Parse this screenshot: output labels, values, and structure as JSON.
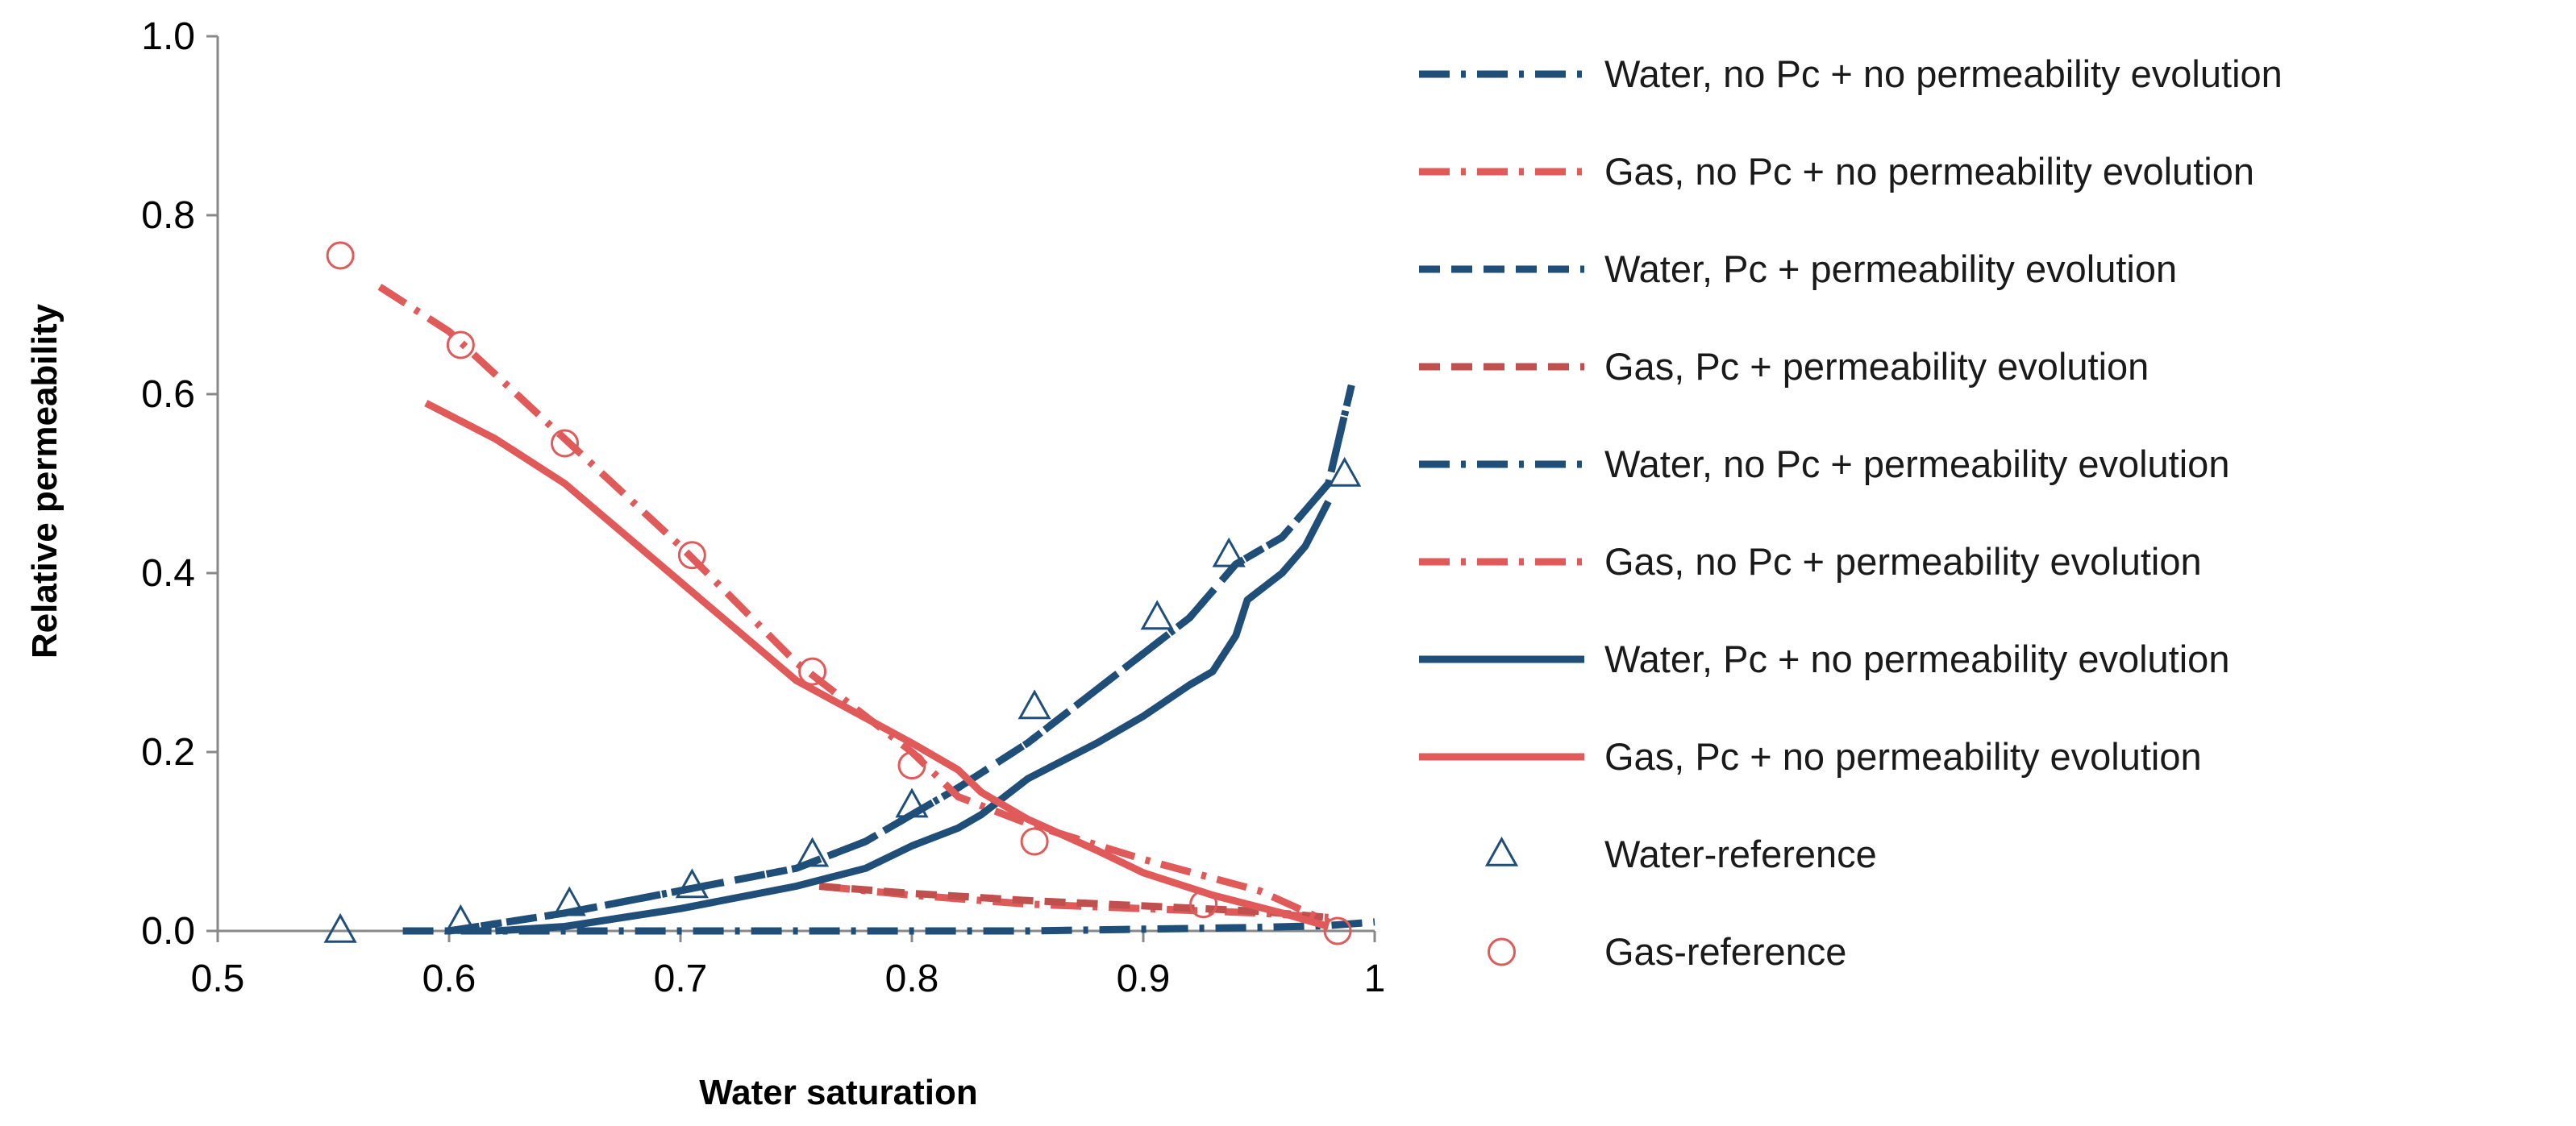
{
  "chart_data": {
    "type": "line",
    "xlabel": "Water saturation",
    "ylabel": "Relative permeability",
    "xlim": [
      0.5,
      1.0
    ],
    "ylim": [
      0.0,
      1.0
    ],
    "xticks": [
      "0.5",
      "0.6",
      "0.7",
      "0.8",
      "0.9",
      "1"
    ],
    "yticks": [
      "0.0",
      "0.2",
      "0.4",
      "0.6",
      "0.8",
      "1.0"
    ],
    "grid": false,
    "legend_position": "right",
    "colors": {
      "water": "#1f4e79",
      "gas": "#e05a5a"
    },
    "series": [
      {
        "name": "Water, no Pc + no permeability evolution",
        "color": "#1f4e79",
        "dash": "long-dash-dot",
        "marker": "none",
        "x": [
          0.58,
          0.65,
          0.7,
          0.75,
          0.8,
          0.85,
          0.9,
          0.95,
          0.98,
          1.0
        ],
        "y": [
          0.0,
          0.0,
          0.0,
          0.0,
          0.0,
          0.0,
          0.002,
          0.004,
          0.006,
          0.01
        ]
      },
      {
        "name": "Gas, no Pc + no permeability evolution",
        "color": "#e05a5a",
        "dash": "long-dash-dot",
        "marker": "none",
        "x": [
          0.76,
          0.8,
          0.85,
          0.9,
          0.95,
          0.98
        ],
        "y": [
          0.05,
          0.04,
          0.03,
          0.025,
          0.02,
          0.015
        ]
      },
      {
        "name": "Water, Pc + permeability evolution",
        "color": "#1f4e79",
        "dash": "dash",
        "marker": "none",
        "x": [
          0.6,
          0.65,
          0.7,
          0.75,
          0.78,
          0.8,
          0.82,
          0.85,
          0.88,
          0.9,
          0.92,
          0.94,
          0.96,
          0.98,
          0.99
        ],
        "y": [
          0.0,
          0.02,
          0.045,
          0.07,
          0.1,
          0.13,
          0.16,
          0.21,
          0.27,
          0.31,
          0.35,
          0.41,
          0.44,
          0.5,
          0.61
        ]
      },
      {
        "name": "Gas, Pc + permeability evolution",
        "color": "#c0504d",
        "dash": "dash",
        "marker": "none",
        "x": [
          0.76,
          0.8,
          0.85,
          0.9,
          0.95,
          0.98
        ],
        "y": [
          0.05,
          0.042,
          0.034,
          0.028,
          0.022,
          0.015
        ]
      },
      {
        "name": "Water, no Pc + permeability evolution",
        "color": "#1f4e79",
        "dash": "long-dash-dot",
        "marker": "none",
        "x": [
          0.6,
          0.65,
          0.7,
          0.75,
          0.78,
          0.8,
          0.82,
          0.85,
          0.88,
          0.9,
          0.92,
          0.94,
          0.96,
          0.98,
          0.99
        ],
        "y": [
          0.0,
          0.02,
          0.045,
          0.07,
          0.1,
          0.13,
          0.16,
          0.21,
          0.27,
          0.31,
          0.35,
          0.41,
          0.44,
          0.5,
          0.61
        ]
      },
      {
        "name": "Gas, no Pc + permeability evolution",
        "color": "#e05a5a",
        "dash": "long-dash-dot",
        "marker": "none",
        "x": [
          0.57,
          0.6,
          0.65,
          0.7,
          0.75,
          0.8,
          0.82,
          0.85,
          0.9,
          0.95,
          0.98
        ],
        "y": [
          0.72,
          0.67,
          0.55,
          0.43,
          0.3,
          0.2,
          0.15,
          0.12,
          0.08,
          0.045,
          0.01
        ]
      },
      {
        "name": "Water, Pc + no permeability evolution",
        "color": "#1f4e79",
        "dash": "solid",
        "marker": "none",
        "x": [
          0.62,
          0.65,
          0.7,
          0.75,
          0.78,
          0.8,
          0.82,
          0.83,
          0.85,
          0.88,
          0.9,
          0.92,
          0.93,
          0.94,
          0.945,
          0.95,
          0.96,
          0.97,
          0.98
        ],
        "y": [
          0.0,
          0.005,
          0.025,
          0.05,
          0.07,
          0.095,
          0.115,
          0.13,
          0.17,
          0.21,
          0.24,
          0.275,
          0.29,
          0.33,
          0.37,
          0.38,
          0.4,
          0.43,
          0.48
        ]
      },
      {
        "name": "Gas, Pc + no permeability evolution",
        "color": "#e05a5a",
        "dash": "solid",
        "marker": "none",
        "x": [
          0.59,
          0.62,
          0.65,
          0.7,
          0.75,
          0.8,
          0.82,
          0.83,
          0.85,
          0.88,
          0.9,
          0.93,
          0.96,
          0.98
        ],
        "y": [
          0.59,
          0.55,
          0.5,
          0.39,
          0.28,
          0.21,
          0.18,
          0.155,
          0.125,
          0.09,
          0.065,
          0.04,
          0.02,
          0.005
        ]
      },
      {
        "name": "Water-reference",
        "color": "#1f4e79",
        "dash": "none",
        "marker": "triangle",
        "x": [
          0.553,
          0.605,
          0.652,
          0.705,
          0.757,
          0.8,
          0.853,
          0.906,
          0.937,
          0.987
        ],
        "y": [
          0.0,
          0.01,
          0.03,
          0.05,
          0.085,
          0.14,
          0.25,
          0.35,
          0.42,
          0.51
        ]
      },
      {
        "name": "Gas-reference",
        "color": "#e05a5a",
        "dash": "none",
        "marker": "circle",
        "x": [
          0.553,
          0.605,
          0.65,
          0.705,
          0.757,
          0.8,
          0.853,
          0.926,
          0.984
        ],
        "y": [
          0.755,
          0.655,
          0.545,
          0.42,
          0.29,
          0.185,
          0.1,
          0.03,
          0.0
        ]
      }
    ]
  }
}
